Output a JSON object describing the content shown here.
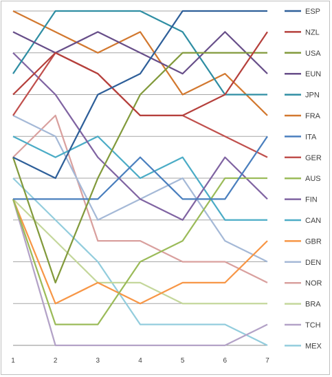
{
  "chart_data": {
    "type": "line",
    "title": "",
    "xlabel": "",
    "ylabel": "",
    "x": [
      1,
      2,
      3,
      4,
      5,
      6,
      7
    ],
    "y_rank_count": 17,
    "grid": "horizontal",
    "legend_position": "right",
    "series": [
      {
        "name": "ESP",
        "color": "#2e5f99",
        "ranks": [
          8,
          9,
          5,
          4,
          1,
          1,
          1
        ]
      },
      {
        "name": "NZL",
        "color": "#b5403c",
        "ranks": [
          5,
          3,
          4,
          6,
          6,
          5,
          2
        ]
      },
      {
        "name": "USA",
        "color": "#829a3c",
        "ranks": [
          8,
          14,
          9,
          5,
          3,
          3,
          3
        ]
      },
      {
        "name": "EUN",
        "color": "#674e89",
        "ranks": [
          2,
          3,
          2,
          3,
          4,
          2,
          4
        ]
      },
      {
        "name": "JPN",
        "color": "#2f8ea3",
        "ranks": [
          4,
          1,
          1,
          1,
          2,
          5,
          5
        ]
      },
      {
        "name": "FRA",
        "color": "#d2782f",
        "ranks": [
          1,
          2,
          3,
          2,
          5,
          4,
          6
        ]
      },
      {
        "name": "ITA",
        "color": "#4a7fbe",
        "ranks": [
          10,
          10,
          10,
          8,
          10,
          10,
          7
        ]
      },
      {
        "name": "GER",
        "color": "#c0504d",
        "ranks": [
          6,
          3,
          4,
          6,
          6,
          7,
          8
        ]
      },
      {
        "name": "AUS",
        "color": "#9bbb59",
        "ranks": [
          10,
          16,
          16,
          13,
          12,
          9,
          9
        ]
      },
      {
        "name": "FIN",
        "color": "#8064a2",
        "ranks": [
          3,
          5,
          8,
          10,
          11,
          8,
          10
        ]
      },
      {
        "name": "CAN",
        "color": "#4bacc6",
        "ranks": [
          7,
          8,
          7,
          9,
          8,
          11,
          11
        ]
      },
      {
        "name": "GBR",
        "color": "#f79646",
        "ranks": [
          10,
          15,
          14,
          15,
          14,
          14,
          12
        ]
      },
      {
        "name": "DEN",
        "color": "#a5b9d7",
        "ranks": [
          6,
          7,
          11,
          10,
          9,
          12,
          13
        ]
      },
      {
        "name": "NOR",
        "color": "#d9a09e",
        "ranks": [
          8,
          6,
          12,
          12,
          13,
          13,
          14
        ]
      },
      {
        "name": "BRA",
        "color": "#c4d79b",
        "ranks": [
          10,
          12,
          14,
          14,
          15,
          15,
          15
        ]
      },
      {
        "name": "TCH",
        "color": "#b3a2c7",
        "ranks": [
          10,
          17,
          17,
          17,
          17,
          17,
          16
        ]
      },
      {
        "name": "MEX",
        "color": "#93cddd",
        "ranks": [
          9,
          11,
          13,
          16,
          16,
          16,
          17
        ]
      }
    ]
  }
}
